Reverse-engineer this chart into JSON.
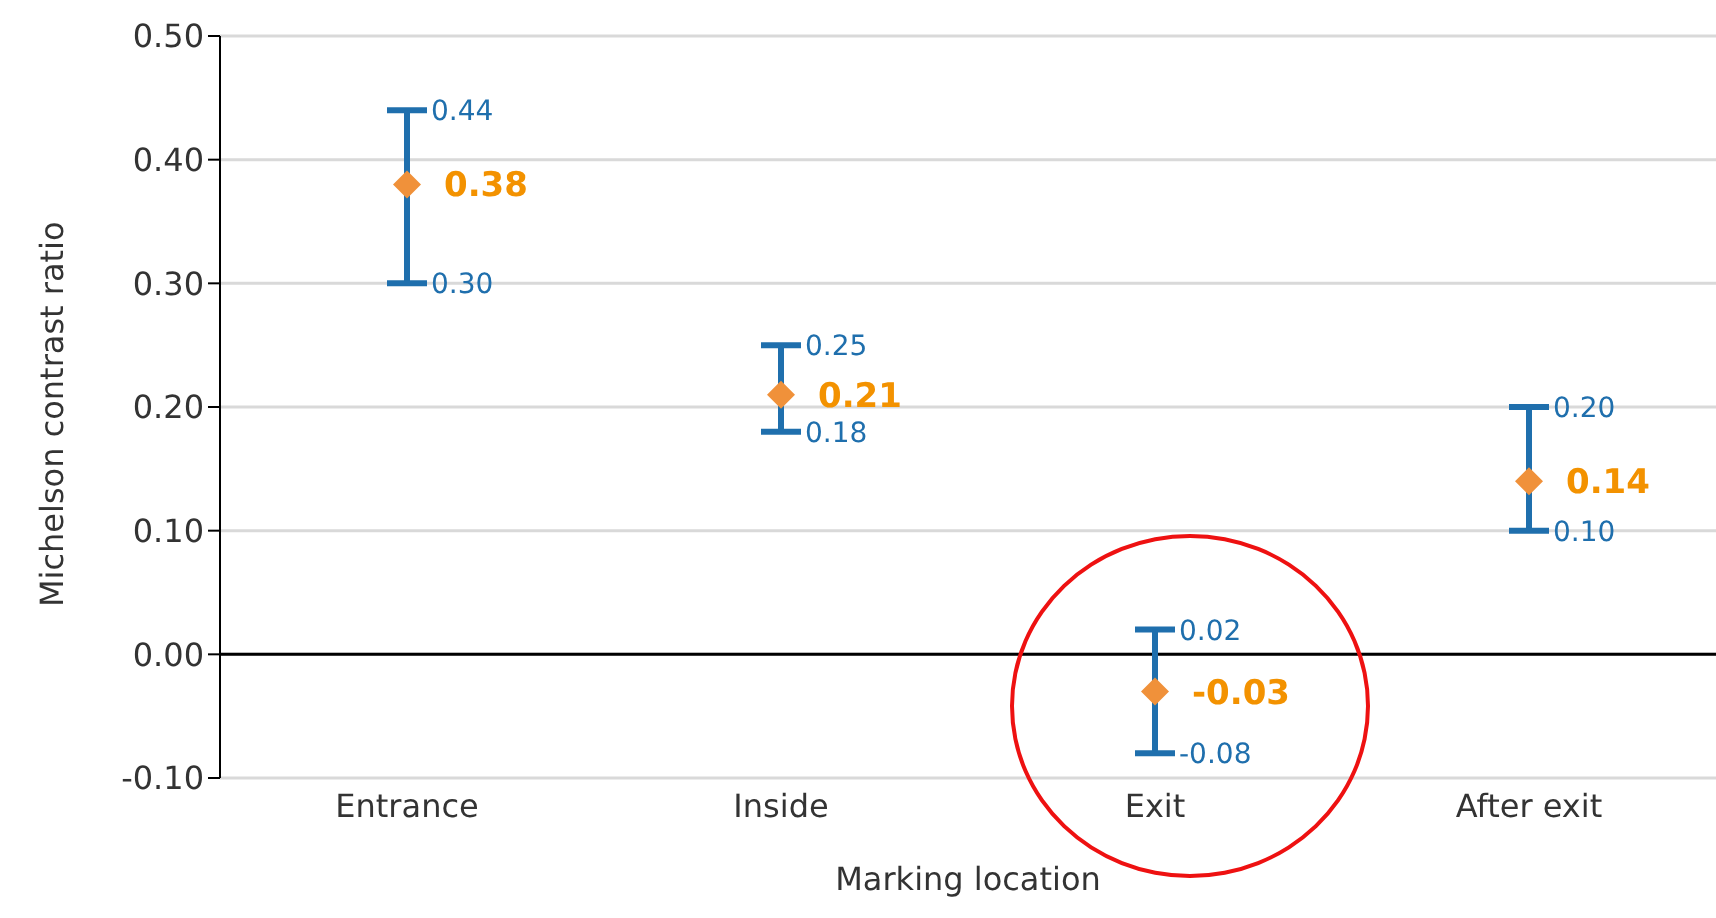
{
  "chart_data": {
    "type": "scatter",
    "xlabel": "Marking location",
    "ylabel": "Michelson contrast ratio",
    "categories": [
      "Entrance",
      "Inside",
      "Exit",
      "After exit"
    ],
    "series": [
      {
        "color": "#f0913a",
        "values": [
          0.38,
          0.21,
          -0.03,
          0.14
        ],
        "errors": [
          [
            0.3,
            0.44
          ],
          [
            0.18,
            0.25
          ],
          [
            -0.08,
            0.02
          ],
          [
            0.1,
            0.2
          ]
        ]
      }
    ],
    "marker": "diamond",
    "data_labels": true,
    "ylim": [
      -0.1,
      0.5
    ],
    "yticks": [
      {
        "value": 0.5,
        "label": "0.50"
      },
      {
        "value": 0.4,
        "label": "0.40"
      },
      {
        "value": 0.3,
        "label": "0.30"
      },
      {
        "value": 0.2,
        "label": "0.20"
      },
      {
        "value": 0.1,
        "label": "0.10"
      },
      {
        "value": 0,
        "label": "0.00"
      },
      {
        "value": -0.1,
        "label": "-0.10"
      }
    ],
    "grid": "y",
    "annotations": [
      {
        "text": "0.44",
        "x": "Entrance",
        "y": 0.44
      },
      {
        "text": "0.30",
        "x": "Entrance",
        "y": 0.3
      },
      {
        "text": "0.25",
        "x": "Inside",
        "y": 0.25
      },
      {
        "text": "0.18",
        "x": "Inside",
        "y": 0.18
      },
      {
        "text": "0.02",
        "x": "Exit",
        "y": 0.02
      },
      {
        "text": "-0.08",
        "x": "Exit",
        "y": -0.08
      },
      {
        "text": "0.20",
        "x": "After exit",
        "y": 0.2
      },
      {
        "text": "0.10",
        "x": "After exit",
        "y": 0.1
      }
    ]
  }
}
